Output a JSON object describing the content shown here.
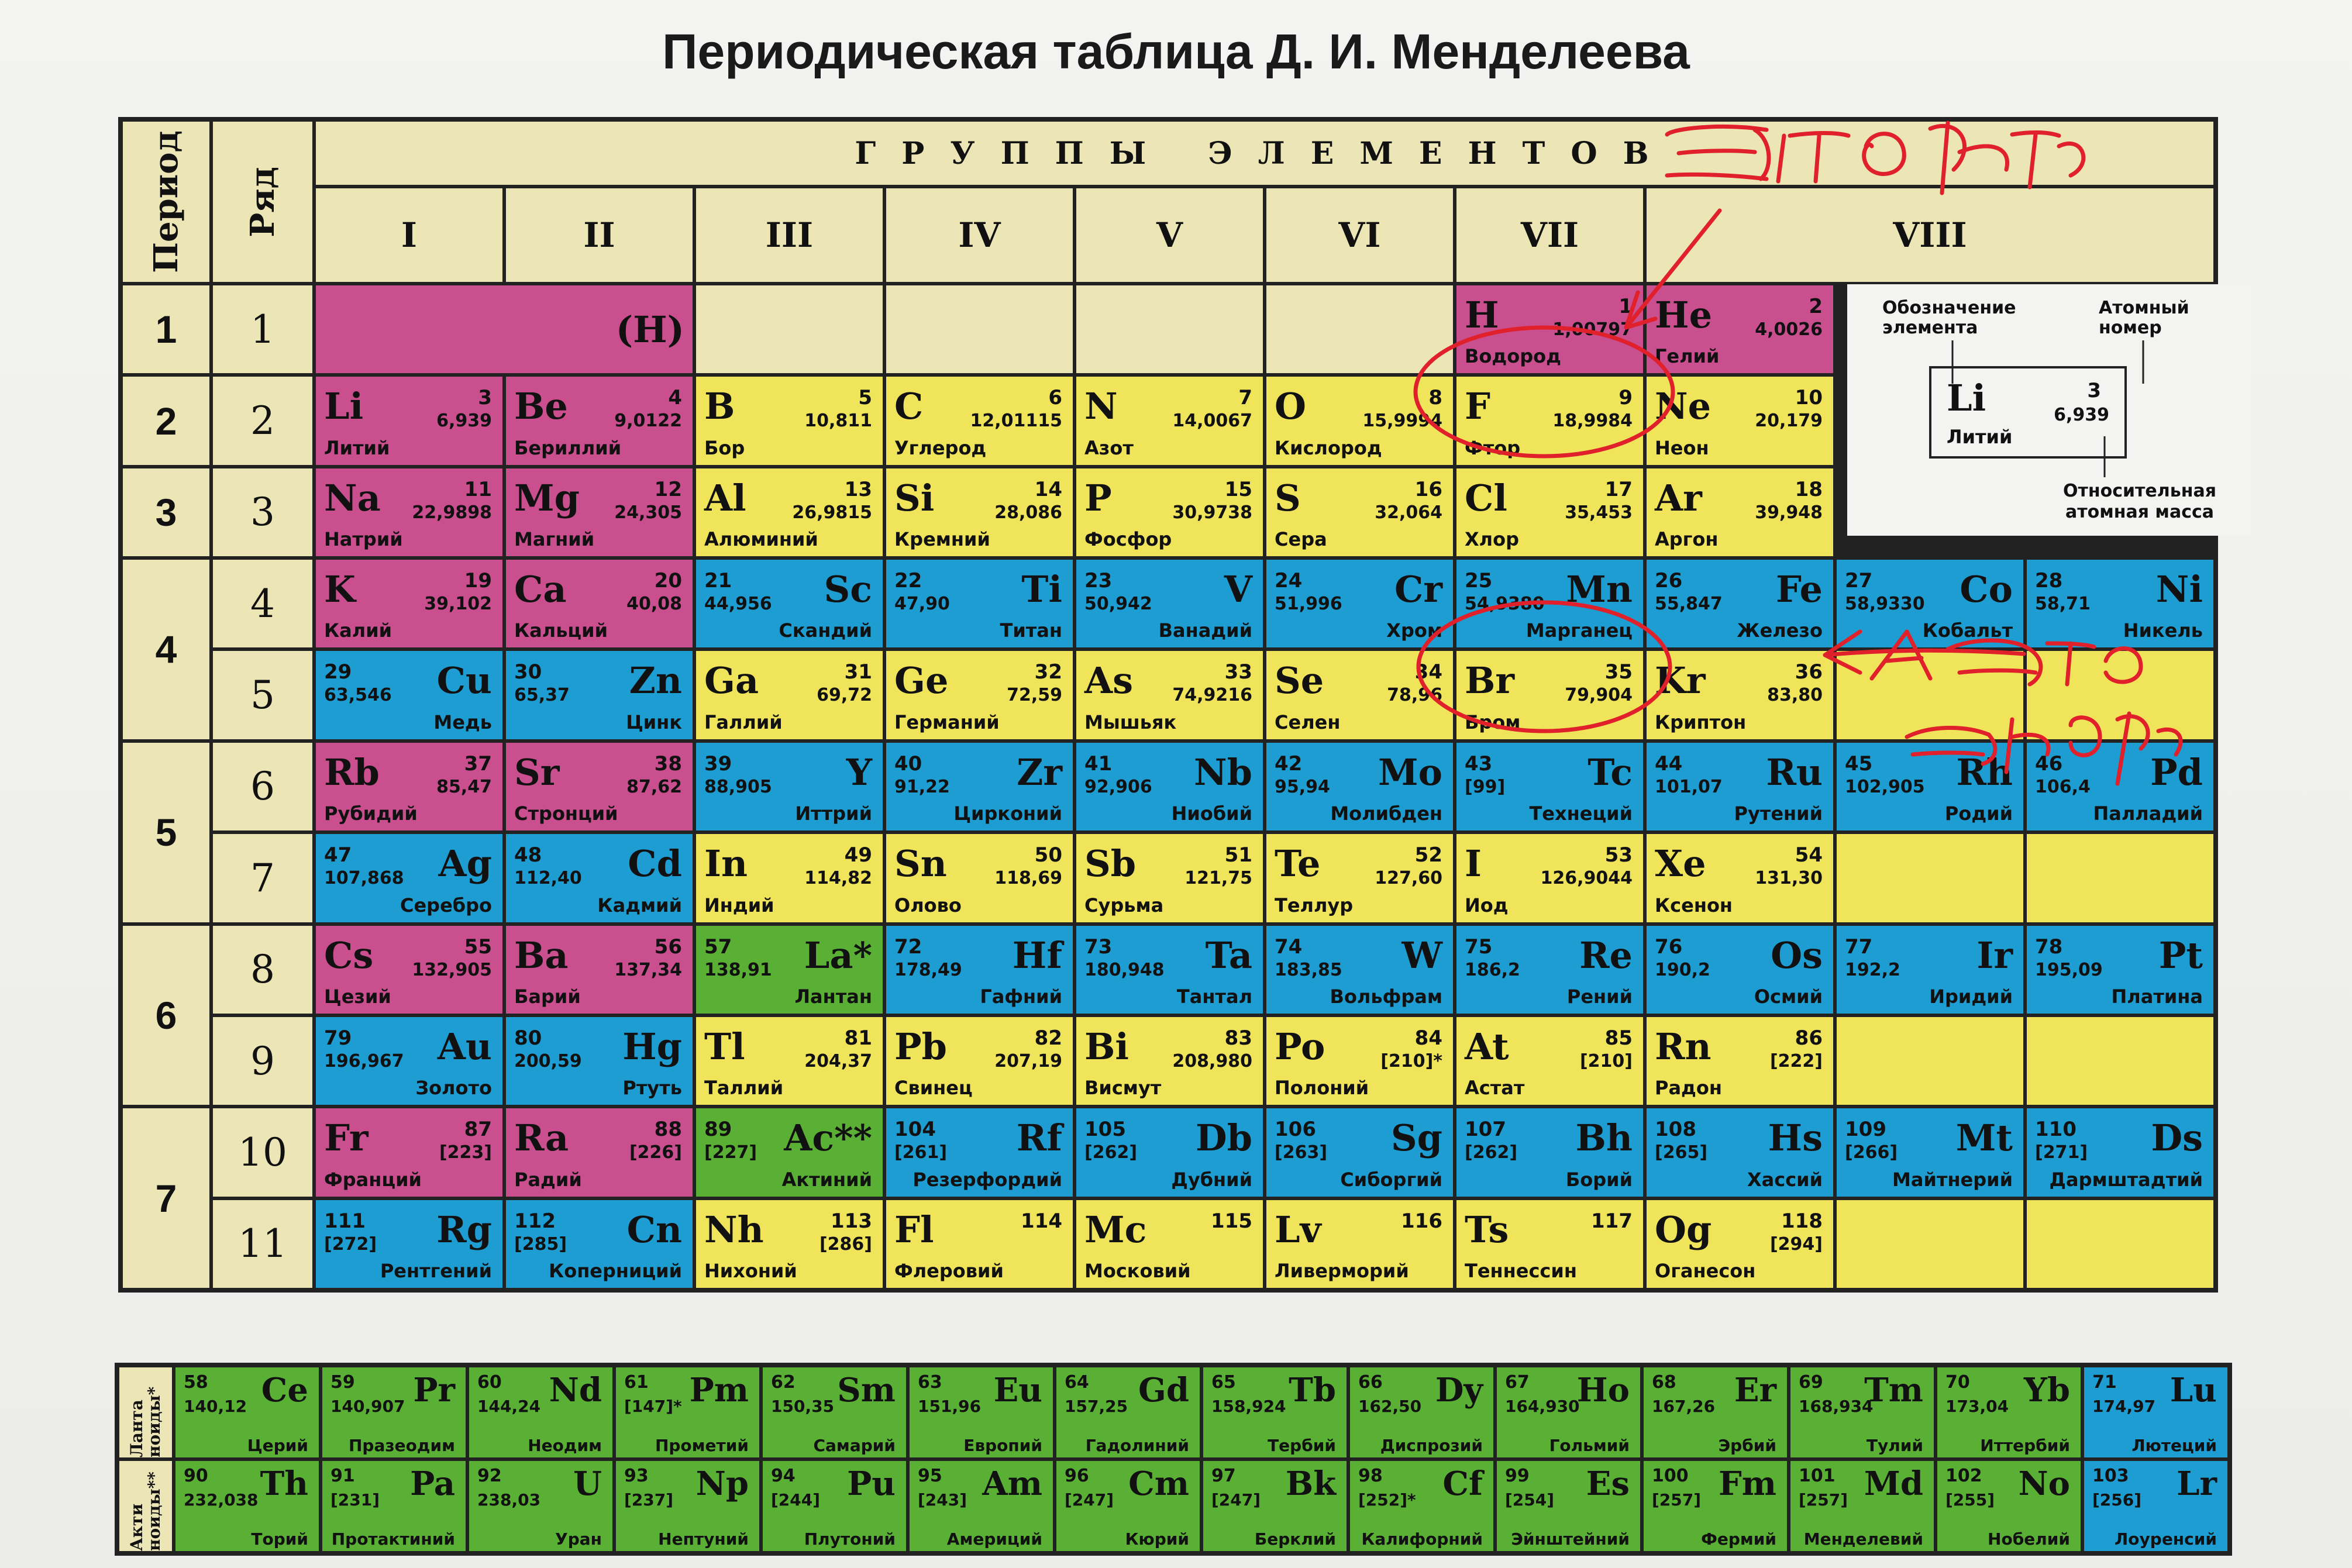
{
  "title": "Периодическая таблица Д. И. Менделеева",
  "headers": {
    "period": "Период",
    "row": "Ряд",
    "groups_title": "ГРУППЫ ЭЛЕМЕНТОВ",
    "groups": [
      "I",
      "II",
      "III",
      "IV",
      "V",
      "VI",
      "VII",
      "VIII"
    ]
  },
  "periods": [
    "1",
    "2",
    "3",
    "4",
    "5",
    "6",
    "7"
  ],
  "rows": [
    "1",
    "2",
    "3",
    "4",
    "5",
    "6",
    "7",
    "8",
    "9",
    "10",
    "11"
  ],
  "colors": {
    "s": "#c94f8e",
    "p": "#f0e55a",
    "d": "#1e9dd3",
    "f": "#5ab034",
    "header": "#ece5b5",
    "ink": "#e0202a"
  },
  "h_placeholder": "(H)",
  "elements": [
    {
      "row": 1,
      "col": 7,
      "sym": "H",
      "num": "1",
      "mass": "1,00797",
      "name": "Водород",
      "c": "s",
      "a": "l"
    },
    {
      "row": 1,
      "col": 8,
      "sym": "He",
      "num": "2",
      "mass": "4,0026",
      "name": "Гелий",
      "c": "s",
      "a": "l"
    },
    {
      "row": 2,
      "col": 1,
      "sym": "Li",
      "num": "3",
      "mass": "6,939",
      "name": "Литий",
      "c": "s",
      "a": "l"
    },
    {
      "row": 2,
      "col": 2,
      "sym": "Be",
      "num": "4",
      "mass": "9,0122",
      "name": "Бериллий",
      "c": "s",
      "a": "l"
    },
    {
      "row": 2,
      "col": 3,
      "sym": "B",
      "num": "5",
      "mass": "10,811",
      "name": "Бор",
      "c": "p",
      "a": "l"
    },
    {
      "row": 2,
      "col": 4,
      "sym": "C",
      "num": "6",
      "mass": "12,01115",
      "name": "Углерод",
      "c": "p",
      "a": "l"
    },
    {
      "row": 2,
      "col": 5,
      "sym": "N",
      "num": "7",
      "mass": "14,0067",
      "name": "Азот",
      "c": "p",
      "a": "l"
    },
    {
      "row": 2,
      "col": 6,
      "sym": "O",
      "num": "8",
      "mass": "15,9994",
      "name": "Кислород",
      "c": "p",
      "a": "l"
    },
    {
      "row": 2,
      "col": 7,
      "sym": "F",
      "num": "9",
      "mass": "18,9984",
      "name": "Фтор",
      "c": "p",
      "a": "l"
    },
    {
      "row": 2,
      "col": 8,
      "sym": "Ne",
      "num": "10",
      "mass": "20,179",
      "name": "Неон",
      "c": "p",
      "a": "l"
    },
    {
      "row": 3,
      "col": 1,
      "sym": "Na",
      "num": "11",
      "mass": "22,9898",
      "name": "Натрий",
      "c": "s",
      "a": "l"
    },
    {
      "row": 3,
      "col": 2,
      "sym": "Mg",
      "num": "12",
      "mass": "24,305",
      "name": "Магний",
      "c": "s",
      "a": "l"
    },
    {
      "row": 3,
      "col": 3,
      "sym": "Al",
      "num": "13",
      "mass": "26,9815",
      "name": "Алюминий",
      "c": "p",
      "a": "l"
    },
    {
      "row": 3,
      "col": 4,
      "sym": "Si",
      "num": "14",
      "mass": "28,086",
      "name": "Кремний",
      "c": "p",
      "a": "l"
    },
    {
      "row": 3,
      "col": 5,
      "sym": "P",
      "num": "15",
      "mass": "30,9738",
      "name": "Фосфор",
      "c": "p",
      "a": "l"
    },
    {
      "row": 3,
      "col": 6,
      "sym": "S",
      "num": "16",
      "mass": "32,064",
      "name": "Сера",
      "c": "p",
      "a": "l"
    },
    {
      "row": 3,
      "col": 7,
      "sym": "Cl",
      "num": "17",
      "mass": "35,453",
      "name": "Хлор",
      "c": "p",
      "a": "l"
    },
    {
      "row": 3,
      "col": 8,
      "sym": "Ar",
      "num": "18",
      "mass": "39,948",
      "name": "Аргон",
      "c": "p",
      "a": "l"
    },
    {
      "row": 4,
      "col": 1,
      "sym": "K",
      "num": "19",
      "mass": "39,102",
      "name": "Калий",
      "c": "s",
      "a": "l"
    },
    {
      "row": 4,
      "col": 2,
      "sym": "Ca",
      "num": "20",
      "mass": "40,08",
      "name": "Кальций",
      "c": "s",
      "a": "l"
    },
    {
      "row": 4,
      "col": 3,
      "sym": "Sc",
      "num": "21",
      "mass": "44,956",
      "name": "Скандий",
      "c": "d",
      "a": "r"
    },
    {
      "row": 4,
      "col": 4,
      "sym": "Ti",
      "num": "22",
      "mass": "47,90",
      "name": "Титан",
      "c": "d",
      "a": "r"
    },
    {
      "row": 4,
      "col": 5,
      "sym": "V",
      "num": "23",
      "mass": "50,942",
      "name": "Ванадий",
      "c": "d",
      "a": "r"
    },
    {
      "row": 4,
      "col": 6,
      "sym": "Cr",
      "num": "24",
      "mass": "51,996",
      "name": "Хром",
      "c": "d",
      "a": "r"
    },
    {
      "row": 4,
      "col": 7,
      "sym": "Mn",
      "num": "25",
      "mass": "54,9380",
      "name": "Марганец",
      "c": "d",
      "a": "r"
    },
    {
      "row": 4,
      "col": 8,
      "sym": "Fe",
      "num": "26",
      "mass": "55,847",
      "name": "Железо",
      "c": "d",
      "a": "r"
    },
    {
      "row": 4,
      "col": 9,
      "sym": "Co",
      "num": "27",
      "mass": "58,9330",
      "name": "Кобальт",
      "c": "d",
      "a": "r"
    },
    {
      "row": 4,
      "col": 10,
      "sym": "Ni",
      "num": "28",
      "mass": "58,71",
      "name": "Никель",
      "c": "d",
      "a": "r"
    },
    {
      "row": 5,
      "col": 1,
      "sym": "Cu",
      "num": "29",
      "mass": "63,546",
      "name": "Медь",
      "c": "d",
      "a": "r"
    },
    {
      "row": 5,
      "col": 2,
      "sym": "Zn",
      "num": "30",
      "mass": "65,37",
      "name": "Цинк",
      "c": "d",
      "a": "r"
    },
    {
      "row": 5,
      "col": 3,
      "sym": "Ga",
      "num": "31",
      "mass": "69,72",
      "name": "Галлий",
      "c": "p",
      "a": "l"
    },
    {
      "row": 5,
      "col": 4,
      "sym": "Ge",
      "num": "32",
      "mass": "72,59",
      "name": "Германий",
      "c": "p",
      "a": "l"
    },
    {
      "row": 5,
      "col": 5,
      "sym": "As",
      "num": "33",
      "mass": "74,9216",
      "name": "Мышьяк",
      "c": "p",
      "a": "l"
    },
    {
      "row": 5,
      "col": 6,
      "sym": "Se",
      "num": "34",
      "mass": "78,96",
      "name": "Селен",
      "c": "p",
      "a": "l"
    },
    {
      "row": 5,
      "col": 7,
      "sym": "Br",
      "num": "35",
      "mass": "79,904",
      "name": "Бром",
      "c": "p",
      "a": "l"
    },
    {
      "row": 5,
      "col": 8,
      "sym": "Kr",
      "num": "36",
      "mass": "83,80",
      "name": "Криптон",
      "c": "p",
      "a": "l"
    },
    {
      "row": 6,
      "col": 1,
      "sym": "Rb",
      "num": "37",
      "mass": "85,47",
      "name": "Рубидий",
      "c": "s",
      "a": "l"
    },
    {
      "row": 6,
      "col": 2,
      "sym": "Sr",
      "num": "38",
      "mass": "87,62",
      "name": "Стронций",
      "c": "s",
      "a": "l"
    },
    {
      "row": 6,
      "col": 3,
      "sym": "Y",
      "num": "39",
      "mass": "88,905",
      "name": "Иттрий",
      "c": "d",
      "a": "r"
    },
    {
      "row": 6,
      "col": 4,
      "sym": "Zr",
      "num": "40",
      "mass": "91,22",
      "name": "Цирконий",
      "c": "d",
      "a": "r"
    },
    {
      "row": 6,
      "col": 5,
      "sym": "Nb",
      "num": "41",
      "mass": "92,906",
      "name": "Ниобий",
      "c": "d",
      "a": "r"
    },
    {
      "row": 6,
      "col": 6,
      "sym": "Mo",
      "num": "42",
      "mass": "95,94",
      "name": "Молибден",
      "c": "d",
      "a": "r"
    },
    {
      "row": 6,
      "col": 7,
      "sym": "Tc",
      "num": "43",
      "mass": "[99]",
      "name": "Технеций",
      "c": "d",
      "a": "r"
    },
    {
      "row": 6,
      "col": 8,
      "sym": "Ru",
      "num": "44",
      "mass": "101,07",
      "name": "Рутений",
      "c": "d",
      "a": "r"
    },
    {
      "row": 6,
      "col": 9,
      "sym": "Rh",
      "num": "45",
      "mass": "102,905",
      "name": "Родий",
      "c": "d",
      "a": "r"
    },
    {
      "row": 6,
      "col": 10,
      "sym": "Pd",
      "num": "46",
      "mass": "106,4",
      "name": "Палладий",
      "c": "d",
      "a": "r"
    },
    {
      "row": 7,
      "col": 1,
      "sym": "Ag",
      "num": "47",
      "mass": "107,868",
      "name": "Серебро",
      "c": "d",
      "a": "r"
    },
    {
      "row": 7,
      "col": 2,
      "sym": "Cd",
      "num": "48",
      "mass": "112,40",
      "name": "Кадмий",
      "c": "d",
      "a": "r"
    },
    {
      "row": 7,
      "col": 3,
      "sym": "In",
      "num": "49",
      "mass": "114,82",
      "name": "Индий",
      "c": "p",
      "a": "l"
    },
    {
      "row": 7,
      "col": 4,
      "sym": "Sn",
      "num": "50",
      "mass": "118,69",
      "name": "Олово",
      "c": "p",
      "a": "l"
    },
    {
      "row": 7,
      "col": 5,
      "sym": "Sb",
      "num": "51",
      "mass": "121,75",
      "name": "Сурьма",
      "c": "p",
      "a": "l"
    },
    {
      "row": 7,
      "col": 6,
      "sym": "Te",
      "num": "52",
      "mass": "127,60",
      "name": "Теллур",
      "c": "p",
      "a": "l"
    },
    {
      "row": 7,
      "col": 7,
      "sym": "I",
      "num": "53",
      "mass": "126,9044",
      "name": "Иод",
      "c": "p",
      "a": "l"
    },
    {
      "row": 7,
      "col": 8,
      "sym": "Xe",
      "num": "54",
      "mass": "131,30",
      "name": "Ксенон",
      "c": "p",
      "a": "l"
    },
    {
      "row": 8,
      "col": 1,
      "sym": "Cs",
      "num": "55",
      "mass": "132,905",
      "name": "Цезий",
      "c": "s",
      "a": "l"
    },
    {
      "row": 8,
      "col": 2,
      "sym": "Ba",
      "num": "56",
      "mass": "137,34",
      "name": "Барий",
      "c": "s",
      "a": "l"
    },
    {
      "row": 8,
      "col": 3,
      "sym": "La*",
      "num": "57",
      "mass": "138,91",
      "name": "Лантан",
      "c": "f",
      "a": "r"
    },
    {
      "row": 8,
      "col": 4,
      "sym": "Hf",
      "num": "72",
      "mass": "178,49",
      "name": "Гафний",
      "c": "d",
      "a": "r"
    },
    {
      "row": 8,
      "col": 5,
      "sym": "Ta",
      "num": "73",
      "mass": "180,948",
      "name": "Тантал",
      "c": "d",
      "a": "r"
    },
    {
      "row": 8,
      "col": 6,
      "sym": "W",
      "num": "74",
      "mass": "183,85",
      "name": "Вольфрам",
      "c": "d",
      "a": "r"
    },
    {
      "row": 8,
      "col": 7,
      "sym": "Re",
      "num": "75",
      "mass": "186,2",
      "name": "Рений",
      "c": "d",
      "a": "r"
    },
    {
      "row": 8,
      "col": 8,
      "sym": "Os",
      "num": "76",
      "mass": "190,2",
      "name": "Осмий",
      "c": "d",
      "a": "r"
    },
    {
      "row": 8,
      "col": 9,
      "sym": "Ir",
      "num": "77",
      "mass": "192,2",
      "name": "Иридий",
      "c": "d",
      "a": "r"
    },
    {
      "row": 8,
      "col": 10,
      "sym": "Pt",
      "num": "78",
      "mass": "195,09",
      "name": "Платина",
      "c": "d",
      "a": "r"
    },
    {
      "row": 9,
      "col": 1,
      "sym": "Au",
      "num": "79",
      "mass": "196,967",
      "name": "Золото",
      "c": "d",
      "a": "r"
    },
    {
      "row": 9,
      "col": 2,
      "sym": "Hg",
      "num": "80",
      "mass": "200,59",
      "name": "Ртуть",
      "c": "d",
      "a": "r"
    },
    {
      "row": 9,
      "col": 3,
      "sym": "Tl",
      "num": "81",
      "mass": "204,37",
      "name": "Таллий",
      "c": "p",
      "a": "l"
    },
    {
      "row": 9,
      "col": 4,
      "sym": "Pb",
      "num": "82",
      "mass": "207,19",
      "name": "Свинец",
      "c": "p",
      "a": "l"
    },
    {
      "row": 9,
      "col": 5,
      "sym": "Bi",
      "num": "83",
      "mass": "208,980",
      "name": "Висмут",
      "c": "p",
      "a": "l"
    },
    {
      "row": 9,
      "col": 6,
      "sym": "Po",
      "num": "84",
      "mass": "[210]*",
      "name": "Полоний",
      "c": "p",
      "a": "l"
    },
    {
      "row": 9,
      "col": 7,
      "sym": "At",
      "num": "85",
      "mass": "[210]",
      "name": "Астат",
      "c": "p",
      "a": "l"
    },
    {
      "row": 9,
      "col": 8,
      "sym": "Rn",
      "num": "86",
      "mass": "[222]",
      "name": "Радон",
      "c": "p",
      "a": "l"
    },
    {
      "row": 10,
      "col": 1,
      "sym": "Fr",
      "num": "87",
      "mass": "[223]",
      "name": "Франций",
      "c": "s",
      "a": "l"
    },
    {
      "row": 10,
      "col": 2,
      "sym": "Ra",
      "num": "88",
      "mass": "[226]",
      "name": "Радий",
      "c": "s",
      "a": "l"
    },
    {
      "row": 10,
      "col": 3,
      "sym": "Ac**",
      "num": "89",
      "mass": "[227]",
      "name": "Актиний",
      "c": "f",
      "a": "r"
    },
    {
      "row": 10,
      "col": 4,
      "sym": "Rf",
      "num": "104",
      "mass": "[261]",
      "name": "Резерфордий",
      "c": "d",
      "a": "r"
    },
    {
      "row": 10,
      "col": 5,
      "sym": "Db",
      "num": "105",
      "mass": "[262]",
      "name": "Дубний",
      "c": "d",
      "a": "r"
    },
    {
      "row": 10,
      "col": 6,
      "sym": "Sg",
      "num": "106",
      "mass": "[263]",
      "name": "Сиборгий",
      "c": "d",
      "a": "r"
    },
    {
      "row": 10,
      "col": 7,
      "sym": "Bh",
      "num": "107",
      "mass": "[262]",
      "name": "Борий",
      "c": "d",
      "a": "r"
    },
    {
      "row": 10,
      "col": 8,
      "sym": "Hs",
      "num": "108",
      "mass": "[265]",
      "name": "Хассий",
      "c": "d",
      "a": "r"
    },
    {
      "row": 10,
      "col": 9,
      "sym": "Mt",
      "num": "109",
      "mass": "[266]",
      "name": "Майтнерий",
      "c": "d",
      "a": "r"
    },
    {
      "row": 10,
      "col": 10,
      "sym": "Ds",
      "num": "110",
      "mass": "[271]",
      "name": "Дармштадтий",
      "c": "d",
      "a": "r"
    },
    {
      "row": 11,
      "col": 1,
      "sym": "Rg",
      "num": "111",
      "mass": "[272]",
      "name": "Рентгений",
      "c": "d",
      "a": "r"
    },
    {
      "row": 11,
      "col": 2,
      "sym": "Cn",
      "num": "112",
      "mass": "[285]",
      "name": "Коперниций",
      "c": "d",
      "a": "r"
    },
    {
      "row": 11,
      "col": 3,
      "sym": "Nh",
      "num": "113",
      "mass": "[286]",
      "name": "Нихоний",
      "c": "p",
      "a": "l"
    },
    {
      "row": 11,
      "col": 4,
      "sym": "Fl",
      "num": "114",
      "mass": "",
      "name": "Флеровий",
      "c": "p",
      "a": "l"
    },
    {
      "row": 11,
      "col": 5,
      "sym": "Mc",
      "num": "115",
      "mass": "",
      "name": "Московий",
      "c": "p",
      "a": "l"
    },
    {
      "row": 11,
      "col": 6,
      "sym": "Lv",
      "num": "116",
      "mass": "",
      "name": "Ливерморий",
      "c": "p",
      "a": "l"
    },
    {
      "row": 11,
      "col": 7,
      "sym": "Ts",
      "num": "117",
      "mass": "",
      "name": "Теннессин",
      "c": "p",
      "a": "l"
    },
    {
      "row": 11,
      "col": 8,
      "sym": "Og",
      "num": "118",
      "mass": "[294]",
      "name": "Оганесон",
      "c": "p",
      "a": "l"
    }
  ],
  "legend": {
    "symbol_label": "Обозначение элемента",
    "number_label": "Атомный номер",
    "mass_label": "Относительная атомная масса",
    "sample": {
      "sym": "Li",
      "num": "3",
      "mass": "6,939",
      "name": "Литий"
    }
  },
  "f_block": {
    "labels": [
      "Ланта ноиды*",
      "Акти ноиды**"
    ],
    "lanthanides": [
      {
        "sym": "Ce",
        "num": "58",
        "mass": "140,12",
        "name": "Церий",
        "c": "f"
      },
      {
        "sym": "Pr",
        "num": "59",
        "mass": "140,907",
        "name": "Празеодим",
        "c": "f"
      },
      {
        "sym": "Nd",
        "num": "60",
        "mass": "144,24",
        "name": "Неодим",
        "c": "f"
      },
      {
        "sym": "Pm",
        "num": "61",
        "mass": "[147]*",
        "name": "Прометий",
        "c": "f"
      },
      {
        "sym": "Sm",
        "num": "62",
        "mass": "150,35",
        "name": "Самарий",
        "c": "f"
      },
      {
        "sym": "Eu",
        "num": "63",
        "mass": "151,96",
        "name": "Европий",
        "c": "f"
      },
      {
        "sym": "Gd",
        "num": "64",
        "mass": "157,25",
        "name": "Гадолиний",
        "c": "f"
      },
      {
        "sym": "Tb",
        "num": "65",
        "mass": "158,924",
        "name": "Тербий",
        "c": "f"
      },
      {
        "sym": "Dy",
        "num": "66",
        "mass": "162,50",
        "name": "Диспрозий",
        "c": "f"
      },
      {
        "sym": "Ho",
        "num": "67",
        "mass": "164,930",
        "name": "Гольмий",
        "c": "f"
      },
      {
        "sym": "Er",
        "num": "68",
        "mass": "167,26",
        "name": "Эрбий",
        "c": "f"
      },
      {
        "sym": "Tm",
        "num": "69",
        "mass": "168,934",
        "name": "Тулий",
        "c": "f"
      },
      {
        "sym": "Yb",
        "num": "70",
        "mass": "173,04",
        "name": "Иттербий",
        "c": "f"
      },
      {
        "sym": "Lu",
        "num": "71",
        "mass": "174,97",
        "name": "Лютеций",
        "c": "d"
      }
    ],
    "actinides": [
      {
        "sym": "Th",
        "num": "90",
        "mass": "232,038",
        "name": "Торий",
        "c": "f"
      },
      {
        "sym": "Pa",
        "num": "91",
        "mass": "[231]",
        "name": "Протактиний",
        "c": "f"
      },
      {
        "sym": "U",
        "num": "92",
        "mass": "238,03",
        "name": "Уран",
        "c": "f"
      },
      {
        "sym": "Np",
        "num": "93",
        "mass": "[237]",
        "name": "Нептуний",
        "c": "f"
      },
      {
        "sym": "Pu",
        "num": "94",
        "mass": "[244]",
        "name": "Плутоний",
        "c": "f"
      },
      {
        "sym": "Am",
        "num": "95",
        "mass": "[243]",
        "name": "Америций",
        "c": "f"
      },
      {
        "sym": "Cm",
        "num": "96",
        "mass": "[247]",
        "name": "Кюрий",
        "c": "f"
      },
      {
        "sym": "Bk",
        "num": "97",
        "mass": "[247]",
        "name": "Берклий",
        "c": "f"
      },
      {
        "sym": "Cf",
        "num": "98",
        "mass": "[252]*",
        "name": "Калифорний",
        "c": "f"
      },
      {
        "sym": "Es",
        "num": "99",
        "mass": "[254]",
        "name": "Эйнштейний",
        "c": "f"
      },
      {
        "sym": "Fm",
        "num": "100",
        "mass": "[257]",
        "name": "Фермий",
        "c": "f"
      },
      {
        "sym": "Md",
        "num": "101",
        "mass": "[257]",
        "name": "Менделевий",
        "c": "f"
      },
      {
        "sym": "No",
        "num": "102",
        "mass": "[255]",
        "name": "Нобелий",
        "c": "f"
      },
      {
        "sym": "Lr",
        "num": "103",
        "mass": "[256]",
        "name": "Лоуренсий",
        "c": "d"
      }
    ]
  },
  "handwriting": {
    "note1": "Это фтор",
    "note2_line1": "А это",
    "note2_line2": "эльфор"
  }
}
